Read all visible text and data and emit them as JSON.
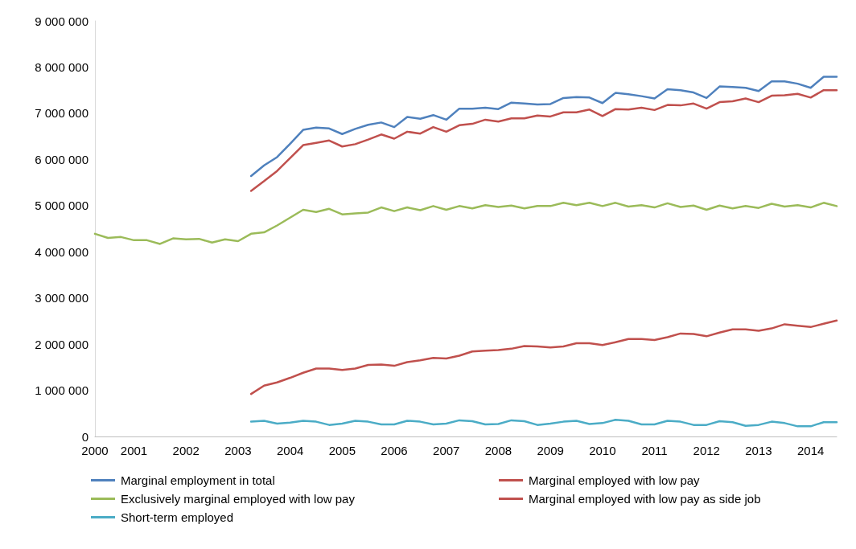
{
  "chart_data": {
    "type": "line",
    "categories": [
      "2000",
      null,
      null,
      "2001",
      null,
      null,
      null,
      "2002",
      null,
      null,
      null,
      "2003",
      null,
      null,
      null,
      "2004",
      null,
      null,
      null,
      "2005",
      null,
      null,
      null,
      "2006",
      null,
      null,
      null,
      "2007",
      null,
      null,
      null,
      "2008",
      null,
      null,
      null,
      "2009",
      null,
      null,
      null,
      "2010",
      null,
      null,
      null,
      "2011",
      null,
      null,
      null,
      "2012",
      null,
      null,
      null,
      "2013",
      null,
      null,
      null,
      "2014",
      null,
      null
    ],
    "ylim": [
      0,
      9000000
    ],
    "yticks": [
      {
        "value": 0,
        "label": "0"
      },
      {
        "value": 1000000,
        "label": "1 000 000"
      },
      {
        "value": 2000000,
        "label": "2 000 000"
      },
      {
        "value": 3000000,
        "label": "3 000 000"
      },
      {
        "value": 4000000,
        "label": "4 000 000"
      },
      {
        "value": 5000000,
        "label": "5 000 000"
      },
      {
        "value": 6000000,
        "label": "6 000 000"
      },
      {
        "value": 7000000,
        "label": "7 000 000"
      },
      {
        "value": 8000000,
        "label": "8 000 000"
      },
      {
        "value": 9000000,
        "label": "9 000 000"
      }
    ],
    "grid": false,
    "legend": "bottom",
    "marker": "none",
    "line_style": "solid",
    "series": [
      {
        "name": "Marginal employment in total",
        "color": "#4f81bd",
        "values": [
          null,
          null,
          null,
          null,
          null,
          null,
          null,
          null,
          null,
          null,
          null,
          null,
          5640000,
          5870000,
          6050000,
          6340000,
          6640000,
          6690000,
          6670000,
          6550000,
          6660000,
          6750000,
          6800000,
          6700000,
          6920000,
          6880000,
          6960000,
          6860000,
          7100000,
          7100000,
          7120000,
          7090000,
          7230000,
          7210000,
          7190000,
          7200000,
          7330000,
          7350000,
          7340000,
          7220000,
          7440000,
          7410000,
          7370000,
          7320000,
          7520000,
          7500000,
          7450000,
          7330000,
          7580000,
          7570000,
          7550000,
          7480000,
          7690000,
          7690000,
          7640000,
          7550000,
          7790000,
          7790000
        ]
      },
      {
        "name": "Marginal employed with low pay",
        "color": "#c0504d",
        "values": [
          null,
          null,
          null,
          null,
          null,
          null,
          null,
          null,
          null,
          null,
          null,
          null,
          5320000,
          5530000,
          5750000,
          6030000,
          6310000,
          6360000,
          6410000,
          6280000,
          6330000,
          6430000,
          6540000,
          6450000,
          6600000,
          6560000,
          6700000,
          6600000,
          6740000,
          6770000,
          6860000,
          6820000,
          6890000,
          6890000,
          6950000,
          6930000,
          7020000,
          7020000,
          7080000,
          6940000,
          7090000,
          7080000,
          7120000,
          7070000,
          7180000,
          7170000,
          7210000,
          7100000,
          7240000,
          7260000,
          7320000,
          7240000,
          7380000,
          7390000,
          7420000,
          7340000,
          7500000,
          7500000
        ]
      },
      {
        "name": "Exclusively marginal employed with low pay",
        "color": "#9bbb59",
        "values": [
          4390000,
          4300000,
          4320000,
          4250000,
          4250000,
          4170000,
          4290000,
          4270000,
          4280000,
          4200000,
          4270000,
          4230000,
          4390000,
          4420000,
          4570000,
          4740000,
          4910000,
          4860000,
          4930000,
          4810000,
          4830000,
          4850000,
          4960000,
          4880000,
          4960000,
          4900000,
          4990000,
          4910000,
          4990000,
          4940000,
          5010000,
          4970000,
          5000000,
          4940000,
          4990000,
          4990000,
          5060000,
          5010000,
          5060000,
          4990000,
          5060000,
          4980000,
          5010000,
          4960000,
          5050000,
          4970000,
          5000000,
          4910000,
          5000000,
          4940000,
          4990000,
          4950000,
          5040000,
          4980000,
          5010000,
          4960000,
          5060000,
          4990000
        ]
      },
      {
        "name": "Marginal employed with low pay as side job",
        "color": "#c0504d",
        "values": [
          null,
          null,
          null,
          null,
          null,
          null,
          null,
          null,
          null,
          null,
          null,
          null,
          920000,
          1100000,
          1170000,
          1270000,
          1380000,
          1470000,
          1470000,
          1440000,
          1470000,
          1550000,
          1560000,
          1530000,
          1610000,
          1650000,
          1700000,
          1690000,
          1750000,
          1840000,
          1860000,
          1870000,
          1900000,
          1960000,
          1950000,
          1930000,
          1950000,
          2020000,
          2020000,
          1980000,
          2040000,
          2110000,
          2110000,
          2090000,
          2150000,
          2230000,
          2220000,
          2170000,
          2250000,
          2320000,
          2320000,
          2290000,
          2340000,
          2430000,
          2400000,
          2370000,
          2440000,
          2510000
        ]
      },
      {
        "name": "Short-term employed",
        "color": "#4bacc6",
        "values": [
          null,
          null,
          null,
          null,
          null,
          null,
          null,
          null,
          null,
          null,
          null,
          null,
          320000,
          340000,
          280000,
          300000,
          340000,
          320000,
          250000,
          280000,
          340000,
          320000,
          260000,
          260000,
          340000,
          320000,
          260000,
          280000,
          350000,
          330000,
          260000,
          270000,
          350000,
          330000,
          250000,
          280000,
          320000,
          340000,
          270000,
          290000,
          360000,
          340000,
          260000,
          260000,
          340000,
          320000,
          250000,
          250000,
          330000,
          310000,
          230000,
          250000,
          320000,
          290000,
          220000,
          220000,
          310000,
          310000
        ]
      }
    ]
  }
}
